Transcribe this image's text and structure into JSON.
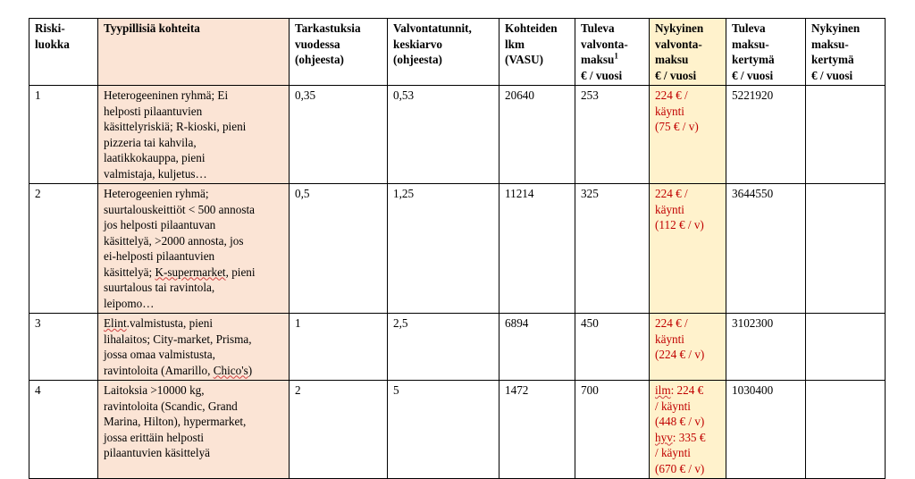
{
  "colors": {
    "topics_column_bg": "#fbe4d5",
    "current_fee_column_bg": "#fff2cc",
    "current_fee_text": "#c00000",
    "border": "#000000"
  },
  "headers": {
    "risk_class": [
      "Riski-",
      "luokka"
    ],
    "typical_targets": "Tyypillisiä kohteita",
    "inspections": [
      "Tarkastuksia",
      "vuodessa",
      "(ohjeesta)"
    ],
    "supervision_hours": [
      "Valvontatunnit,",
      "keskiarvo",
      "(ohjeesta)"
    ],
    "target_count": [
      "Kohteiden",
      "lkm",
      "(VASU)"
    ],
    "future_fee": [
      "Tuleva",
      "valvonta-",
      "maksu",
      "€ / vuosi"
    ],
    "future_fee_footnote": "1",
    "current_fee": [
      "Nykyinen",
      "valvonta-",
      "maksu",
      "€ / vuosi"
    ],
    "future_accrual": [
      "Tuleva",
      "maksu-",
      "kertymä",
      "€ / vuosi"
    ],
    "current_accrual": [
      "Nykyinen",
      "maksu-",
      "kertymä",
      "€ / vuosi"
    ]
  },
  "rows": [
    {
      "risk_class": "1",
      "targets": [
        "Heterogeeninen ryhmä; Ei",
        "helposti pilaantuvien",
        "käsittelyriskiä; R-kioski, pieni",
        "pizzeria tai kahvila,",
        "laatikkokauppa, pieni",
        "valmistaja, kuljetus…"
      ],
      "inspections": "0,35",
      "hours": "0,53",
      "count": "20640",
      "future_fee": "253",
      "current_fee": [
        "224 € /",
        "käynti",
        "(75 € / v)"
      ],
      "future_accrual": "5221920",
      "current_accrual": ""
    },
    {
      "risk_class": "2",
      "targets": [
        "Heterogeenien ryhmä;",
        "suurtalouskeittiöt < 500 annosta",
        "jos helposti pilaantuvan",
        "käsittelyä, >2000 annosta, jos",
        "ei-helposti pilaantuvien",
        "käsittelyä; ",
        "K-supermarket",
        ", pieni",
        "suurtalous tai ravintola,",
        "leipomo…"
      ],
      "inspections": "0,5",
      "hours": "1,25",
      "count": "11214",
      "future_fee": "325",
      "current_fee": [
        "224 € /",
        "käynti",
        "(112 € / v)"
      ],
      "future_accrual": "3644550",
      "current_accrual": ""
    },
    {
      "risk_class": "3",
      "targets": [
        "Elint",
        ".valmistusta, pieni",
        "lihalaitos; City-market, Prisma,",
        "jossa omaa valmistusta,",
        "ravintoloita (Amarillo, ",
        "Chico's",
        ")"
      ],
      "inspections": "1",
      "hours": "2,5",
      "count": "6894",
      "future_fee": "450",
      "current_fee": [
        "224 € /",
        "käynti",
        "(224 € / v)"
      ],
      "future_accrual": "3102300",
      "current_accrual": ""
    },
    {
      "risk_class": "4",
      "targets": [
        "Laitoksia >10000 kg,",
        "ravintoloita (Scandic, Grand",
        "Marina, Hilton), hypermarket,",
        "jossa erittäin helposti",
        "pilaantuvien käsittelyä"
      ],
      "inspections": "2",
      "hours": "5",
      "count": "1472",
      "future_fee": "700",
      "current_fee": [
        "ilm",
        ": 224 €",
        "/ käynti",
        "(448 € / v)",
        "hyv",
        ": 335 €",
        "/ käynti",
        "(670 € / v)"
      ],
      "future_accrual": "1030400",
      "current_accrual": ""
    }
  ]
}
